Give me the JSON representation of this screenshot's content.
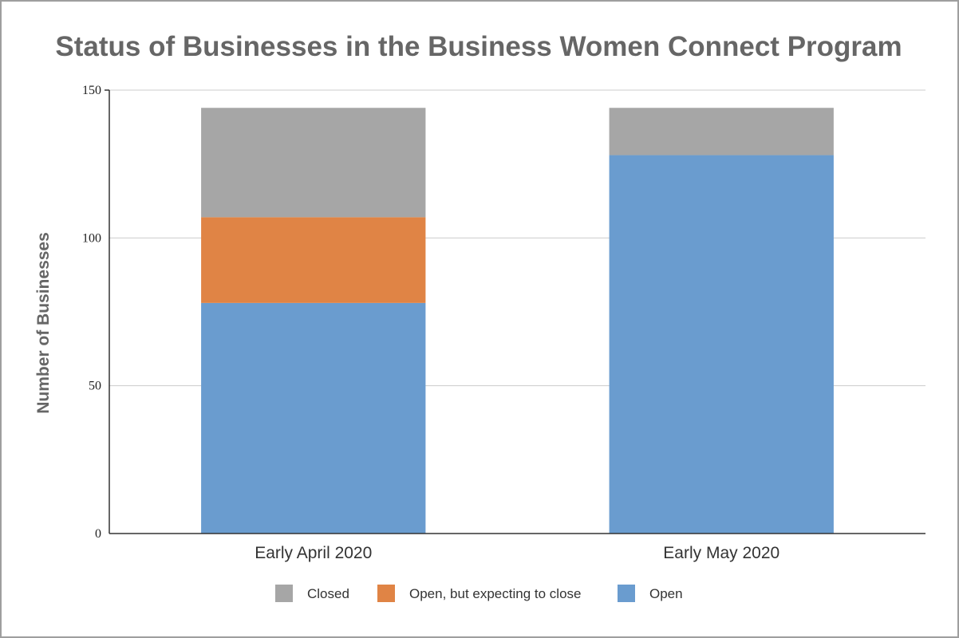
{
  "chart_data": {
    "type": "bar",
    "stacked": true,
    "title": "Status of Businesses in the Business Women Connect Program",
    "xlabel": "",
    "ylabel": "Number of Businesses",
    "ylim": [
      0,
      150
    ],
    "yticks": [
      0,
      50,
      100,
      150
    ],
    "grid": true,
    "legend_position": "bottom",
    "categories": [
      "Early April 2020",
      "Early May 2020"
    ],
    "series": [
      {
        "name": "Open",
        "color": "#6a9ccf",
        "values": [
          78,
          128
        ]
      },
      {
        "name": "Open, but expecting to close",
        "color": "#e08445",
        "values": [
          29,
          0
        ]
      },
      {
        "name": "Closed",
        "color": "#a6a6a6",
        "values": [
          37,
          16
        ]
      }
    ],
    "legend_order": [
      "Closed",
      "Open, but expecting to close",
      "Open"
    ]
  }
}
